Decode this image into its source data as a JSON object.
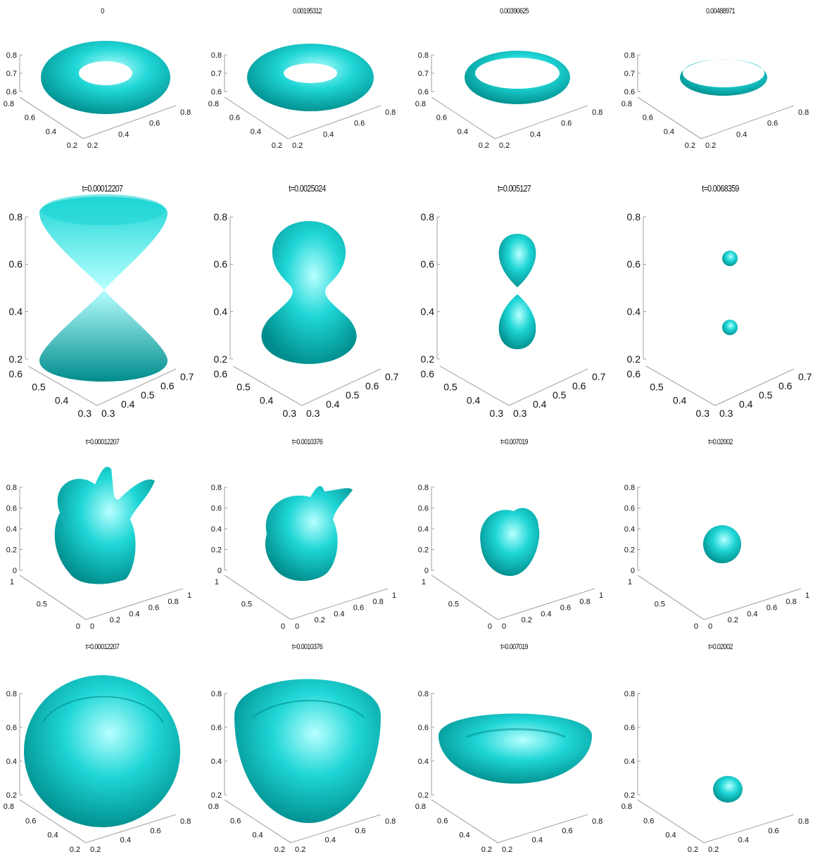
{
  "rows": [
    {
      "kind": "torus",
      "titles": [
        "0",
        "0.00195312",
        "0.00390625",
        "0.00488971"
      ],
      "axes": {
        "z": [
          "0.6",
          "0.7",
          "0.8"
        ],
        "left": [
          "0.2",
          "0.4",
          "0.6",
          "0.8"
        ],
        "right": [
          "0.2",
          "0.4",
          "0.6",
          "0.8"
        ]
      }
    },
    {
      "kind": "hourglass",
      "titles": [
        "t=0.00012207",
        "t=0.0025024",
        "t=0.005127",
        "t=0.0068359"
      ],
      "axes": {
        "z": [
          "0.2",
          "0.4",
          "0.6",
          "0.8"
        ],
        "left": [
          "0.3",
          "0.4",
          "0.5",
          "0.6"
        ],
        "right": [
          "0.3",
          "0.4",
          "0.5",
          "0.6",
          "0.7"
        ]
      }
    },
    {
      "kind": "bunny",
      "titles": [
        "t=0.00012207",
        "t=0.0010376",
        "t=0.007019",
        "t=0.02002"
      ],
      "axes": {
        "z": [
          "0",
          "0.2",
          "0.4",
          "0.6",
          "0.8"
        ],
        "left": [
          "0",
          "0.5",
          "1"
        ],
        "right": [
          "0",
          "0.2",
          "0.4",
          "0.6",
          "0.8",
          "1"
        ]
      }
    },
    {
      "kind": "bowl",
      "titles": [
        "t=0.00012207",
        "t=0.0010376",
        "t=0.007019",
        "t=0.02002"
      ],
      "axes": {
        "z": [
          "0.2",
          "0.4",
          "0.6",
          "0.8"
        ],
        "left": [
          "0.2",
          "0.4",
          "0.6",
          "0.8"
        ],
        "right": [
          "0.2",
          "0.4",
          "0.6",
          "0.8"
        ]
      }
    }
  ],
  "colors": {
    "surface_light": "#b8ffff",
    "surface_mid": "#1fd6d6",
    "surface_dark": "#008c8c",
    "axis": "#888888"
  }
}
